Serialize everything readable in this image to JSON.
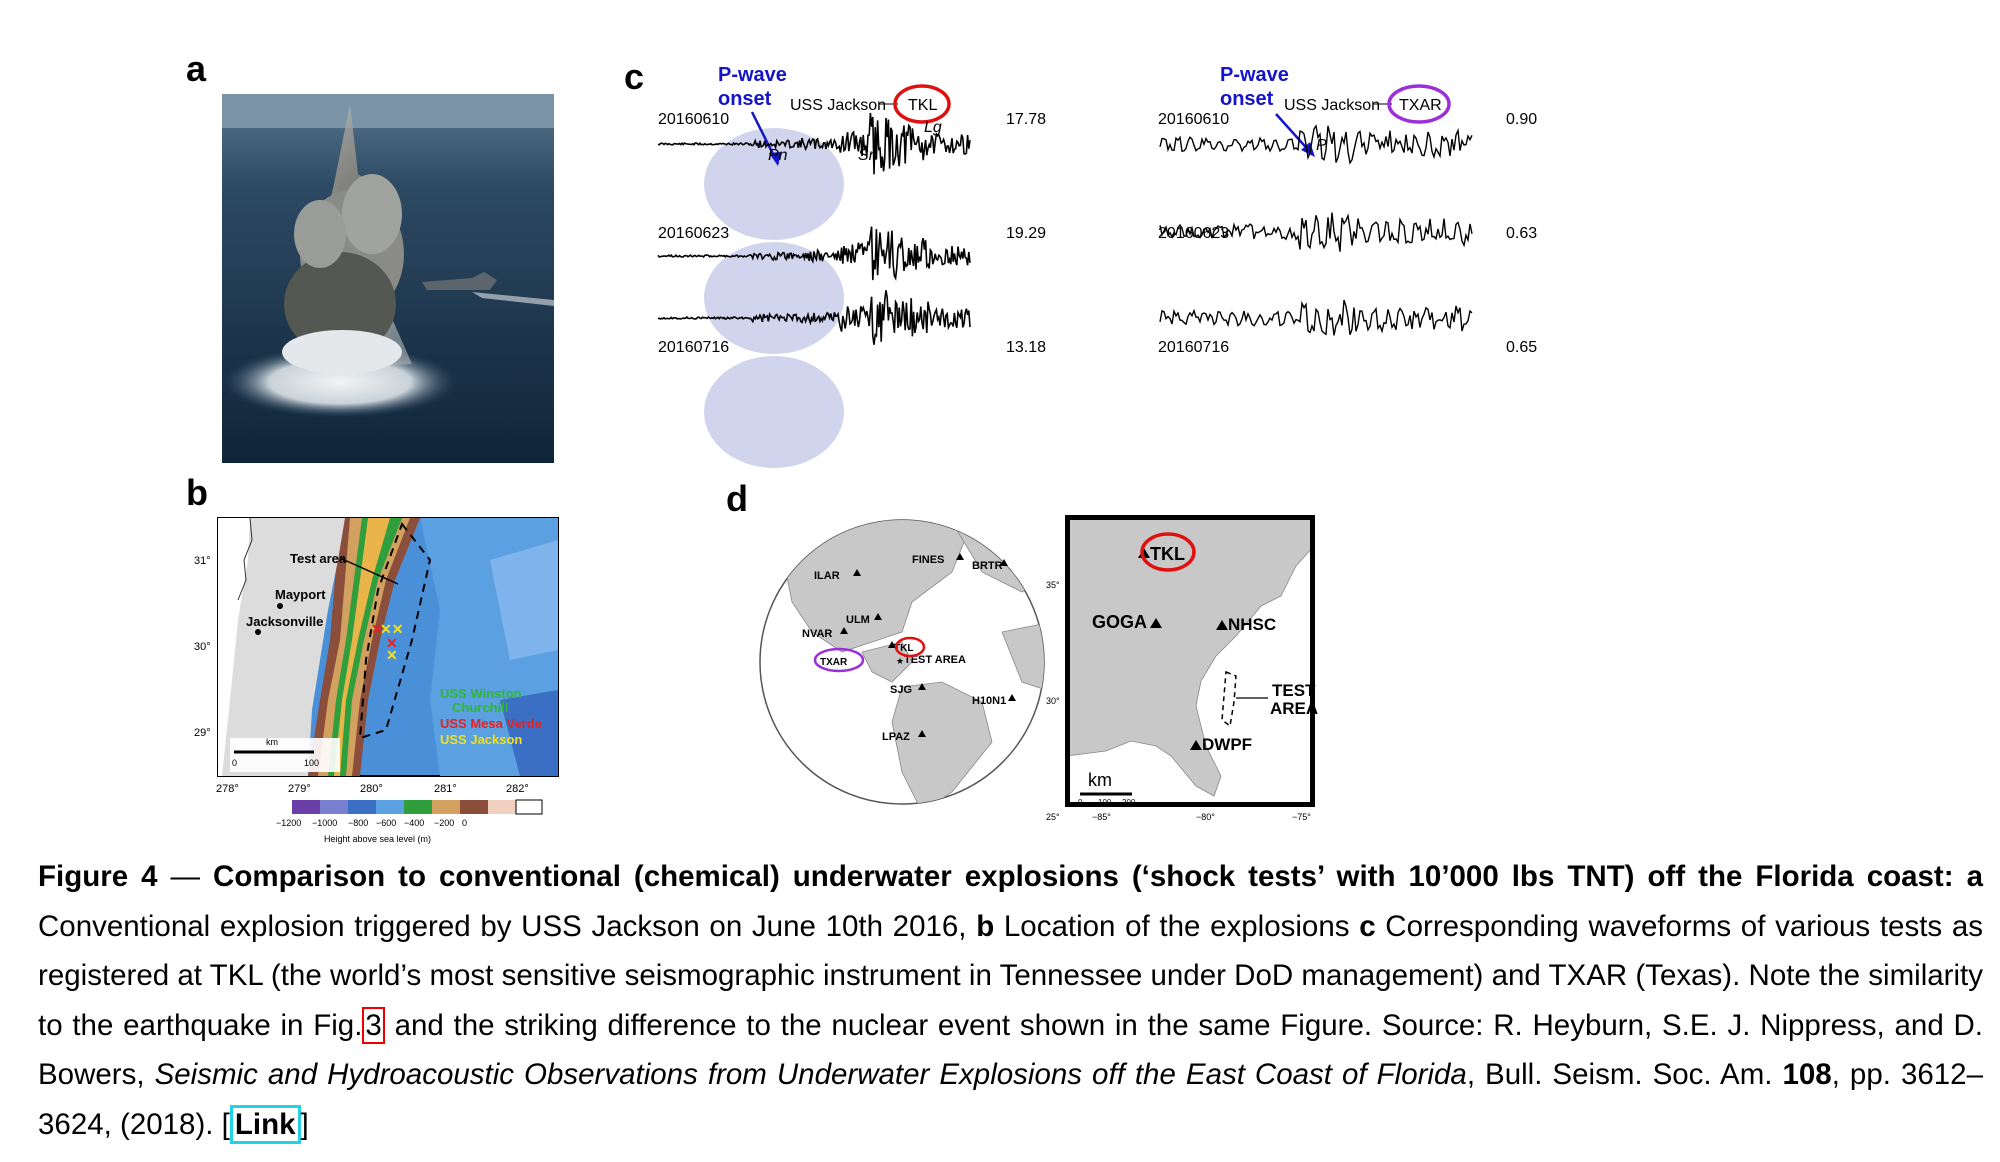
{
  "panels": {
    "a": "a",
    "b": "b",
    "c": "c",
    "d": "d"
  },
  "seismograms": {
    "pwave_label_line1": "P-wave",
    "pwave_label_line2": "onset",
    "left": {
      "ship": "USS Jackson",
      "station": "TKL",
      "traces": [
        {
          "date": "20160610",
          "amp": "17.78"
        },
        {
          "date": "20160623",
          "amp": "19.29"
        },
        {
          "date": "20160716",
          "amp": "13.18"
        }
      ],
      "phases": {
        "pn": "Pn",
        "sn": "Sn",
        "lg": "Lg"
      }
    },
    "right": {
      "ship": "USS Jackson",
      "station": "TXAR",
      "traces": [
        {
          "date": "20160610",
          "amp": "0.90"
        },
        {
          "date": "20160623",
          "amp": "0.63"
        },
        {
          "date": "20160716",
          "amp": "0.65"
        }
      ],
      "phases": {
        "p": "P"
      }
    },
    "colors": {
      "pwave": "#1414c8",
      "tkl_circle": "#e01010",
      "txar_circle": "#9b30d9",
      "onset_bubble": "#c8cdea"
    }
  },
  "map_b": {
    "test_area": "Test area",
    "mayport": "Mayport",
    "jacksonville": "Jacksonville",
    "ships": [
      {
        "name": "USS Winston Churchill",
        "line1": "USS Winston",
        "line2": "Churchill",
        "color": "#2eb82e"
      },
      {
        "name": "USS Mesa Verde",
        "line1": "USS Mesa Verde",
        "color": "#e82020"
      },
      {
        "name": "USS Jackson",
        "line1": "USS Jackson",
        "color": "#f0e020"
      }
    ],
    "lat_labels": [
      "31°",
      "30°",
      "29°"
    ],
    "lon_labels": [
      "278°",
      "279°",
      "280°",
      "281°",
      "282°"
    ],
    "scale_unit": "km",
    "scale_0": "0",
    "scale_100": "100",
    "colorbar_ticks": [
      "−1200",
      "−1000",
      "−800",
      "−600",
      "−400",
      "−200",
      "0"
    ],
    "colorbar_label": "Height above sea level (m)"
  },
  "globe_d": {
    "stations": [
      "ILAR",
      "FINES",
      "BRTR",
      "ULM",
      "NVAR",
      "TKL",
      "TXAR",
      "SJG",
      "H10N1",
      "LPAZ"
    ],
    "test_area": "TEST AREA"
  },
  "usmap_d": {
    "stations": [
      "TKL",
      "GOGA",
      "NHSC",
      "DWPF"
    ],
    "test_area_line1": "TEST",
    "test_area_line2": "AREA",
    "scale_unit": "km",
    "scale_ticks": [
      "0",
      "100",
      "200"
    ],
    "lat_labels": [
      "35°",
      "30°",
      "25°"
    ],
    "lon_labels": [
      "−85°",
      "−80°",
      "−75°"
    ]
  },
  "caption": {
    "fig_label": "Figure 4",
    "dash": " — ",
    "title": "Comparison to conventional (chemical) underwater explosions (‘shock tests’ with 10’000 lbs TNT) off the Florida coast:",
    "a_letter": "a",
    "a_text": " Conventional explosion triggered by USS Jackson on June 10th 2016, ",
    "b_letter": "b",
    "b_text": " Location of the explosions ",
    "c_letter": "c",
    "c_text": " Corresponding waveforms of various tests as registered at TKL (the world’s most sensitive seismographic instrument in Tennessee under DoD management) and TXAR (Texas). Note the similarity to the earthquake in Fig.",
    "fig_ref": "3",
    "after_ref": " and the striking difference to the nuclear event shown in the same Figure. Source: R. Heyburn, S.E. J. Nippress, and D. Bowers, ",
    "paper_title": "Seismic and Hydroacoustic Observations from Underwater Explosions off the East Coast of Florida",
    "journal": ", Bull. Seism. Soc. Am. ",
    "volume": "108",
    "pages": ", pp. 3612–3624, (2018). [",
    "link": "Link",
    "close": "]"
  }
}
